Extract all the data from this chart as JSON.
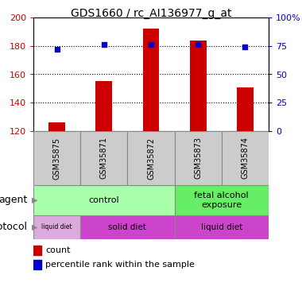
{
  "title": "GDS1660 / rc_AI136977_g_at",
  "samples": [
    "GSM35875",
    "GSM35871",
    "GSM35872",
    "GSM35873",
    "GSM35874"
  ],
  "counts": [
    126,
    155,
    192,
    184,
    151
  ],
  "percentiles": [
    72,
    76,
    76,
    76,
    74
  ],
  "ylim_left": [
    120,
    200
  ],
  "ylim_right": [
    0,
    100
  ],
  "yticks_left": [
    120,
    140,
    160,
    180,
    200
  ],
  "yticks_right": [
    0,
    25,
    50,
    75,
    100
  ],
  "yticklabels_right": [
    "0",
    "25",
    "50",
    "75",
    "100%"
  ],
  "bar_color": "#cc0000",
  "dot_color": "#0000cc",
  "bar_bottom": 120,
  "agent_data": [
    {
      "text": "control",
      "start": 0,
      "end": 3,
      "color": "#aaffaa"
    },
    {
      "text": "fetal alcohol\nexposure",
      "start": 3,
      "end": 5,
      "color": "#66ee66"
    }
  ],
  "proto_data": [
    {
      "text": "liquid diet",
      "start": 0,
      "end": 1,
      "color": "#ddaadd"
    },
    {
      "text": "solid diet",
      "start": 1,
      "end": 3,
      "color": "#cc44cc"
    },
    {
      "text": "liquid diet",
      "start": 3,
      "end": 5,
      "color": "#cc44cc"
    }
  ],
  "legend_count_color": "#cc0000",
  "legend_pct_color": "#0000cc",
  "agent_row_label": "agent",
  "protocol_row_label": "protocol",
  "sample_bg": "#cccccc",
  "grid_color": "#000000",
  "fig_width": 3.8,
  "fig_height": 3.75,
  "dpi": 100
}
